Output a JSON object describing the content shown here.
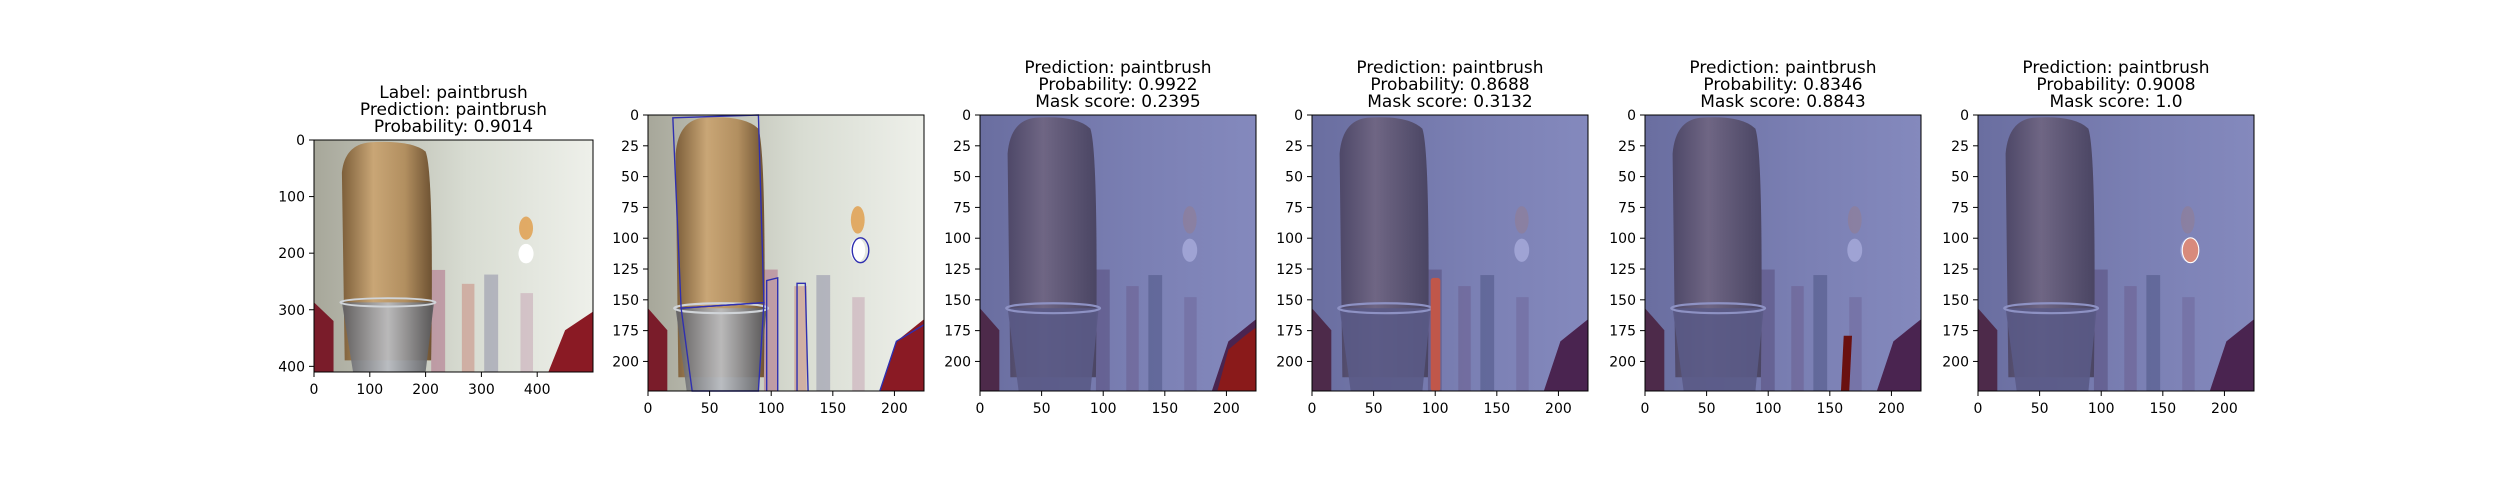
{
  "figure": {
    "panels": [
      {
        "kind": "original",
        "title_lines": [
          "Label: paintbrush",
          "Prediction: paintbrush",
          "Probability: 0.9014"
        ],
        "x_ticks": [
          0,
          100,
          200,
          300,
          400
        ],
        "y_ticks": [
          0,
          100,
          200,
          300,
          400
        ],
        "xlim": [
          0,
          500
        ],
        "ylim": [
          410,
          0
        ],
        "image_extent": [
          0,
          500,
          410,
          0
        ]
      },
      {
        "kind": "segmentation",
        "title_lines": [],
        "x_ticks": [
          0,
          50,
          100,
          150,
          200
        ],
        "y_ticks": [
          0,
          25,
          50,
          75,
          100,
          125,
          150,
          175,
          200
        ],
        "xlim": [
          0,
          224
        ],
        "ylim": [
          224,
          0
        ],
        "image_extent": [
          0,
          224,
          224,
          0
        ]
      },
      {
        "kind": "mask",
        "title_lines": [
          "Prediction: paintbrush",
          "Probability: 0.9922",
          "Mask score: 0.2395"
        ],
        "x_ticks": [
          0,
          50,
          100,
          150,
          200
        ],
        "y_ticks": [
          0,
          25,
          50,
          75,
          100,
          125,
          150,
          175,
          200
        ],
        "xlim": [
          0,
          224
        ],
        "ylim": [
          224,
          0
        ],
        "image_extent": [
          0,
          224,
          224,
          0
        ]
      },
      {
        "kind": "mask",
        "title_lines": [
          "Prediction: paintbrush",
          "Probability: 0.8688",
          "Mask score: 0.3132"
        ],
        "x_ticks": [
          0,
          50,
          100,
          150,
          200
        ],
        "y_ticks": [
          0,
          25,
          50,
          75,
          100,
          125,
          150,
          175,
          200
        ],
        "xlim": [
          0,
          224
        ],
        "ylim": [
          224,
          0
        ],
        "image_extent": [
          0,
          224,
          224,
          0
        ]
      },
      {
        "kind": "mask",
        "title_lines": [
          "Prediction: paintbrush",
          "Probability: 0.8346",
          "Mask score: 0.8843"
        ],
        "x_ticks": [
          0,
          50,
          100,
          150,
          200
        ],
        "y_ticks": [
          0,
          25,
          50,
          75,
          100,
          125,
          150,
          175,
          200
        ],
        "xlim": [
          0,
          224
        ],
        "ylim": [
          224,
          0
        ],
        "image_extent": [
          0,
          224,
          224,
          0
        ]
      },
      {
        "kind": "mask",
        "title_lines": [
          "Prediction: paintbrush",
          "Probability: 0.9008",
          "Mask score: 1.0"
        ],
        "x_ticks": [
          0,
          50,
          100,
          150,
          200
        ],
        "y_ticks": [
          0,
          25,
          50,
          75,
          100,
          125,
          150,
          175,
          200
        ],
        "xlim": [
          0,
          224
        ],
        "ylim": [
          224,
          0
        ],
        "image_extent": [
          0,
          224,
          224,
          0
        ]
      }
    ]
  },
  "chart_data": [
    {
      "type": "heatmap",
      "title": "Label: paintbrush / Prediction: paintbrush / Probability: 0.9014",
      "xlim": [
        0,
        500
      ],
      "ylim": [
        410,
        0
      ],
      "grid": false
    },
    {
      "type": "heatmap",
      "title": "",
      "xlim": [
        0,
        224
      ],
      "ylim": [
        224,
        0
      ],
      "grid": false
    },
    {
      "type": "heatmap",
      "title": "Prediction: paintbrush / Probability: 0.9922 / Mask score: 0.2395",
      "xlim": [
        0,
        224
      ],
      "ylim": [
        224,
        0
      ],
      "grid": false
    },
    {
      "type": "heatmap",
      "title": "Prediction: paintbrush / Probability: 0.8688 / Mask score: 0.3132",
      "xlim": [
        0,
        224
      ],
      "ylim": [
        224,
        0
      ],
      "grid": false
    },
    {
      "type": "heatmap",
      "title": "Prediction: paintbrush / Probability: 0.8346 / Mask score: 0.8843",
      "xlim": [
        0,
        224
      ],
      "ylim": [
        224,
        0
      ],
      "grid": false
    },
    {
      "type": "heatmap",
      "title": "Prediction: paintbrush / Probability: 0.9008 / Mask score: 1.0",
      "xlim": [
        0,
        224
      ],
      "ylim": [
        224,
        0
      ],
      "grid": false
    }
  ]
}
